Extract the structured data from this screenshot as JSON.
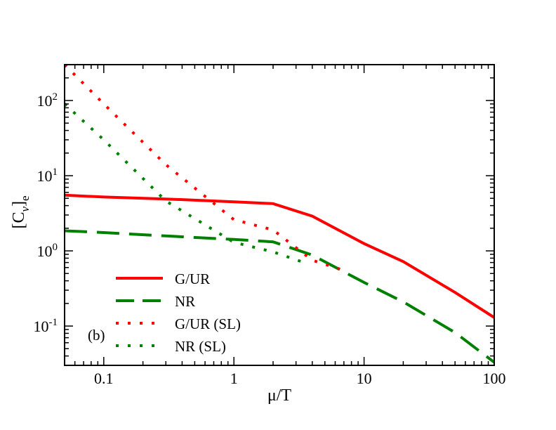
{
  "chart_data": {
    "type": "line",
    "title": "",
    "panel_label": "(b)",
    "xlabel": "μ/T",
    "ylabel": {
      "base": "[C",
      "sub1": "ν",
      "close": "]",
      "sub2": "e"
    },
    "xscale": "log",
    "yscale": "log",
    "xlim": [
      0.05,
      100
    ],
    "ylim": [
      0.03,
      300
    ],
    "x_ticks": [
      {
        "value": 0.1,
        "label": "0.1"
      },
      {
        "value": 1,
        "label": "1"
      },
      {
        "value": 10,
        "label": "10"
      },
      {
        "value": 100,
        "label": "100"
      }
    ],
    "y_ticks": [
      {
        "value": 0.1,
        "base": "10",
        "exp": "-1"
      },
      {
        "value": 1,
        "base": "10",
        "exp": "0"
      },
      {
        "value": 10,
        "base": "10",
        "exp": "1"
      },
      {
        "value": 100,
        "base": "10",
        "exp": "2"
      }
    ],
    "legend_position": "bottom-left",
    "series": [
      {
        "name": "G/UR",
        "color": "#ff0000",
        "style": "solid",
        "points": [
          [
            0.05,
            5.5
          ],
          [
            0.1,
            5.2
          ],
          [
            0.3,
            4.9
          ],
          [
            1,
            4.5
          ],
          [
            2,
            4.25
          ],
          [
            4,
            2.9
          ],
          [
            10,
            1.25
          ],
          [
            20,
            0.72
          ],
          [
            50,
            0.28
          ],
          [
            100,
            0.13
          ]
        ]
      },
      {
        "name": "NR",
        "color": "#008000",
        "style": "dashed",
        "points": [
          [
            0.05,
            1.85
          ],
          [
            0.1,
            1.75
          ],
          [
            0.3,
            1.58
          ],
          [
            1,
            1.42
          ],
          [
            2,
            1.32
          ],
          [
            4,
            0.88
          ],
          [
            10,
            0.38
          ],
          [
            20,
            0.21
          ],
          [
            50,
            0.082
          ],
          [
            100,
            0.033
          ]
        ]
      },
      {
        "name": "G/UR (SL)",
        "color": "#ff0000",
        "style": "dotted",
        "points": [
          [
            0.05,
            300
          ],
          [
            0.1,
            90
          ],
          [
            0.3,
            14
          ],
          [
            1,
            2.6
          ],
          [
            2,
            1.9
          ],
          [
            4,
            0.75
          ],
          [
            7,
            0.55
          ]
        ]
      },
      {
        "name": "NR (SL)",
        "color": "#008000",
        "style": "dotted",
        "points": [
          [
            0.05,
            90
          ],
          [
            0.1,
            30
          ],
          [
            0.3,
            4.6
          ],
          [
            1,
            1.3
          ],
          [
            2,
            0.97
          ],
          [
            3.3,
            0.72
          ]
        ]
      }
    ]
  }
}
